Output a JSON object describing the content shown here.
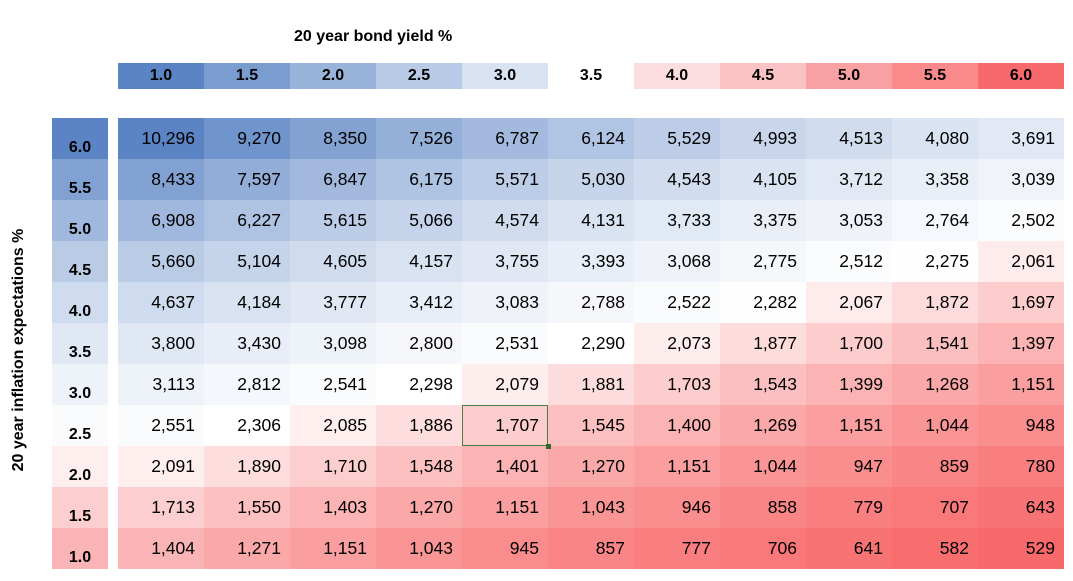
{
  "chart_data": {
    "type": "heatmap",
    "title": "",
    "xlabel": "20 year bond yield %",
    "ylabel": "20 year inflation expectations %",
    "x": [
      "1.0",
      "1.5",
      "2.0",
      "2.5",
      "3.0",
      "3.5",
      "4.0",
      "4.5",
      "5.0",
      "5.5",
      "6.0"
    ],
    "y": [
      "6.0",
      "5.5",
      "5.0",
      "4.5",
      "4.0",
      "3.5",
      "3.0",
      "2.5",
      "2.0",
      "1.5",
      "1.0"
    ],
    "values": [
      [
        "10,296",
        "9,270",
        "8,350",
        "7,526",
        "6,787",
        "6,124",
        "5,529",
        "4,993",
        "4,513",
        "4,080",
        "3,691"
      ],
      [
        "8,433",
        "7,597",
        "6,847",
        "6,175",
        "5,571",
        "5,030",
        "4,543",
        "4,105",
        "3,712",
        "3,358",
        "3,039"
      ],
      [
        "6,908",
        "6,227",
        "5,615",
        "5,066",
        "4,574",
        "4,131",
        "3,733",
        "3,375",
        "3,053",
        "2,764",
        "2,502"
      ],
      [
        "5,660",
        "5,104",
        "4,605",
        "4,157",
        "3,755",
        "3,393",
        "3,068",
        "2,775",
        "2,512",
        "2,275",
        "2,061"
      ],
      [
        "4,637",
        "4,184",
        "3,777",
        "3,412",
        "3,083",
        "2,788",
        "2,522",
        "2,282",
        "2,067",
        "1,872",
        "1,697"
      ],
      [
        "3,800",
        "3,430",
        "3,098",
        "2,800",
        "2,531",
        "2,290",
        "2,073",
        "1,877",
        "1,700",
        "1,541",
        "1,397"
      ],
      [
        "3,113",
        "2,812",
        "2,541",
        "2,298",
        "2,079",
        "1,881",
        "1,703",
        "1,543",
        "1,399",
        "1,268",
        "1,151"
      ],
      [
        "2,551",
        "2,306",
        "2,085",
        "1,886",
        "1,707",
        "1,545",
        "1,400",
        "1,269",
        "1,151",
        "1,044",
        "948"
      ],
      [
        "2,091",
        "1,890",
        "1,710",
        "1,548",
        "1,401",
        "1,270",
        "1,151",
        "1,044",
        "947",
        "859",
        "780"
      ],
      [
        "1,713",
        "1,550",
        "1,403",
        "1,270",
        "1,151",
        "1,043",
        "946",
        "858",
        "779",
        "707",
        "643"
      ],
      [
        "1,404",
        "1,271",
        "1,151",
        "1,043",
        "945",
        "857",
        "777",
        "706",
        "641",
        "582",
        "529"
      ]
    ],
    "selected_cell": {
      "row": 7,
      "col": 4
    },
    "colors": {
      "high": "#5b84c4",
      "mid": "#ffffff",
      "low": "#f8696b"
    },
    "header_colors": [
      "#5b84c4",
      "#7b9ccf",
      "#9ab3da",
      "#b9cae6",
      "#d8e2f1",
      "#ffffff",
      "#fcdee0",
      "#fbc3c4",
      "#f9a1a2",
      "#f9898a",
      "#f8696b"
    ],
    "legend": "none",
    "grid": false
  }
}
